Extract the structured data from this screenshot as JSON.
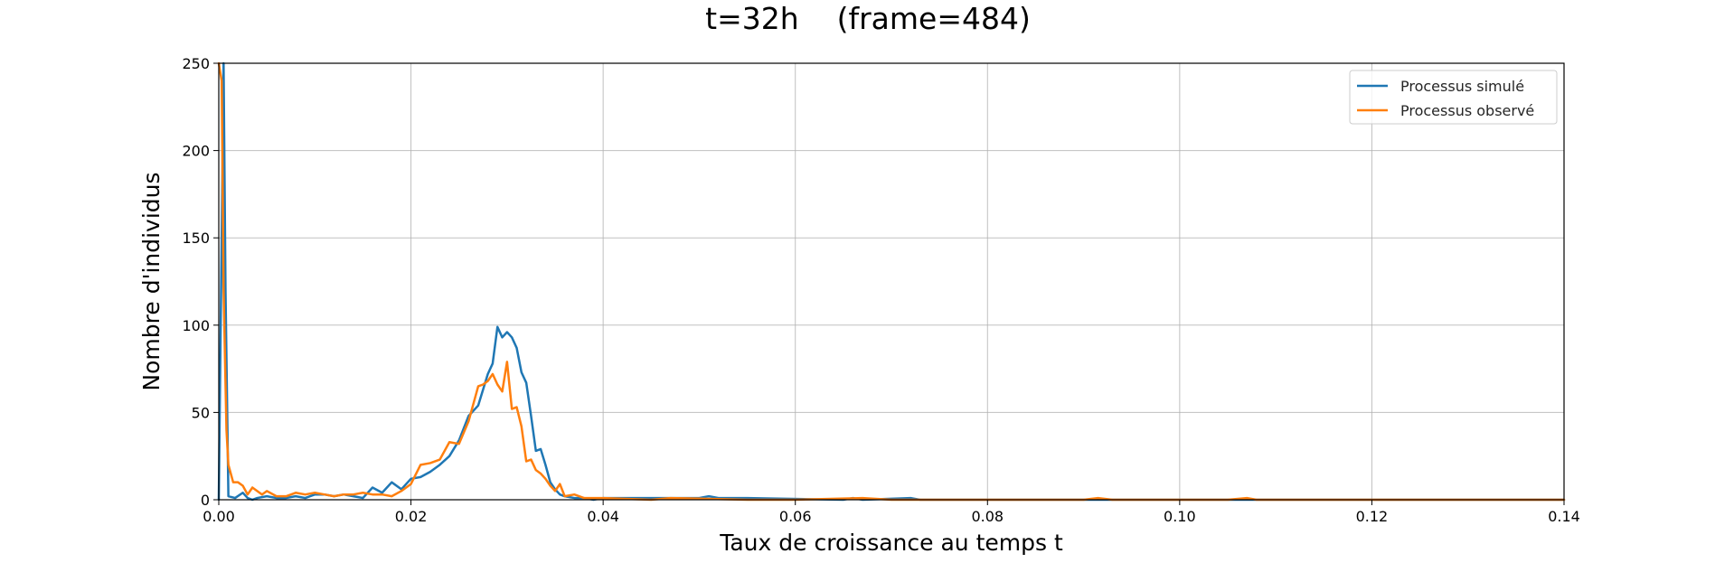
{
  "chart_data": {
    "type": "line",
    "title": "t=32h    (frame=484)",
    "xlabel": "Taux de croissance au temps t",
    "ylabel": "Nombre d'individus",
    "xlim": [
      0.0,
      0.14
    ],
    "ylim": [
      0,
      250
    ],
    "xticks": [
      0.0,
      0.02,
      0.04,
      0.06,
      0.08,
      0.1,
      0.12,
      0.14
    ],
    "xtick_labels": [
      "0.00",
      "0.02",
      "0.04",
      "0.06",
      "0.08",
      "0.10",
      "0.12",
      "0.14"
    ],
    "yticks": [
      0,
      50,
      100,
      150,
      200,
      250
    ],
    "ytick_labels": [
      "0",
      "50",
      "100",
      "150",
      "200",
      "250"
    ],
    "grid": true,
    "legend_position": "top-right",
    "series": [
      {
        "name": "Processus simulé",
        "color": "#1f77b4",
        "x": [
          0.0,
          0.0005,
          0.0007,
          0.001,
          0.0017,
          0.0025,
          0.003,
          0.0035,
          0.004,
          0.005,
          0.006,
          0.007,
          0.008,
          0.009,
          0.01,
          0.011,
          0.012,
          0.013,
          0.014,
          0.015,
          0.016,
          0.017,
          0.018,
          0.019,
          0.02,
          0.021,
          0.022,
          0.023,
          0.024,
          0.025,
          0.026,
          0.027,
          0.028,
          0.0285,
          0.029,
          0.0295,
          0.03,
          0.0305,
          0.031,
          0.0315,
          0.032,
          0.0325,
          0.033,
          0.0335,
          0.034,
          0.0345,
          0.035,
          0.0355,
          0.036,
          0.037,
          0.038,
          0.039,
          0.04,
          0.045,
          0.05,
          0.051,
          0.052,
          0.053,
          0.055,
          0.065,
          0.066,
          0.067,
          0.072,
          0.073,
          0.08,
          0.09,
          0.1,
          0.11,
          0.12,
          0.13,
          0.14
        ],
        "y": [
          0,
          250,
          120,
          2,
          1,
          4,
          1,
          0,
          1,
          2,
          1,
          1,
          2,
          1,
          3,
          3,
          2,
          3,
          2,
          1,
          7,
          4,
          10,
          6,
          12,
          13,
          16,
          20,
          25,
          34,
          48,
          54,
          72,
          78,
          99,
          93,
          96,
          93,
          87,
          73,
          67,
          48,
          28,
          29,
          20,
          10,
          6,
          3,
          2,
          1,
          1,
          0,
          1,
          1,
          1,
          2,
          1,
          1,
          1,
          0,
          1,
          0,
          1,
          0,
          0,
          0,
          0,
          0,
          0,
          0,
          0
        ]
      },
      {
        "name": "Processus observé",
        "color": "#ff7f0e",
        "x": [
          0.0,
          0.0003,
          0.0005,
          0.0008,
          0.001,
          0.0015,
          0.002,
          0.0025,
          0.003,
          0.0035,
          0.004,
          0.0045,
          0.005,
          0.006,
          0.007,
          0.008,
          0.009,
          0.01,
          0.011,
          0.012,
          0.013,
          0.014,
          0.015,
          0.016,
          0.017,
          0.018,
          0.019,
          0.02,
          0.021,
          0.022,
          0.023,
          0.024,
          0.025,
          0.026,
          0.027,
          0.0275,
          0.028,
          0.0285,
          0.029,
          0.0295,
          0.03,
          0.0305,
          0.031,
          0.0315,
          0.032,
          0.0325,
          0.033,
          0.0335,
          0.034,
          0.0345,
          0.035,
          0.0355,
          0.036,
          0.037,
          0.038,
          0.039,
          0.04,
          0.045,
          0.047,
          0.055,
          0.06,
          0.067,
          0.07,
          0.08,
          0.09,
          0.0915,
          0.093,
          0.1,
          0.105,
          0.107,
          0.108,
          0.12,
          0.13,
          0.14
        ],
        "y": [
          250,
          240,
          120,
          40,
          20,
          10,
          10,
          8,
          3,
          7,
          5,
          3,
          5,
          2,
          2,
          4,
          3,
          4,
          3,
          2,
          3,
          3,
          4,
          3,
          3,
          2,
          5,
          9,
          20,
          21,
          23,
          33,
          32,
          45,
          65,
          66,
          68,
          72,
          66,
          62,
          79,
          52,
          53,
          42,
          22,
          23,
          17,
          15,
          12,
          8,
          5,
          9,
          2,
          3,
          1,
          1,
          1,
          0,
          1,
          0,
          0,
          1,
          0,
          0,
          0,
          1,
          0,
          0,
          0,
          1,
          0,
          0,
          0,
          0
        ]
      }
    ]
  },
  "colors": {
    "simulated": "#1f77b4",
    "observed": "#ff7f0e",
    "grid": "#b0b0b0"
  }
}
